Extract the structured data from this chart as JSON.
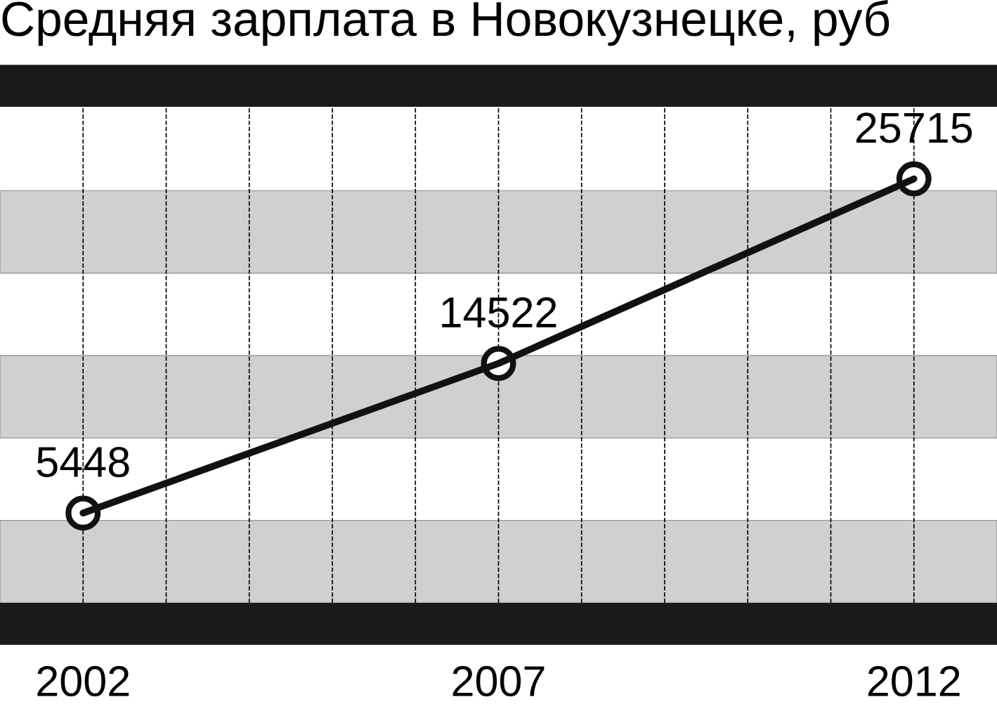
{
  "chart_data": {
    "type": "line",
    "title": "Средняя зарплата в Новокузнецке, руб",
    "x": [
      2002,
      2007,
      2012
    ],
    "series": [
      {
        "color": "#111111",
        "values": [
          5448,
          14522,
          25715
        ]
      }
    ],
    "data_labels": true,
    "marker": "circle",
    "line_style": "solid",
    "xlim": [
      2001,
      2013
    ],
    "xticks": [
      2002,
      {
        "value": 2003,
        "label": null
      },
      {
        "value": 2004,
        "label": null
      },
      {
        "value": 2005,
        "label": null
      },
      {
        "value": 2006,
        "label": null
      },
      2007,
      {
        "value": 2008,
        "label": null
      },
      {
        "value": 2009,
        "label": null
      },
      {
        "value": 2010,
        "label": null
      },
      {
        "value": 2011,
        "label": null
      },
      2012
    ],
    "tick_labels": "x",
    "grid": "x",
    "legend": false,
    "bands": [
      {
        "axis": "y",
        "from": 0,
        "to": 5000,
        "color": "#d0d0d0"
      },
      {
        "axis": "y",
        "from": 10000,
        "to": 15000,
        "color": "#d0d0d0"
      },
      {
        "axis": "y",
        "from": 20000,
        "to": 25000,
        "color": "#d0d0d0"
      }
    ]
  }
}
